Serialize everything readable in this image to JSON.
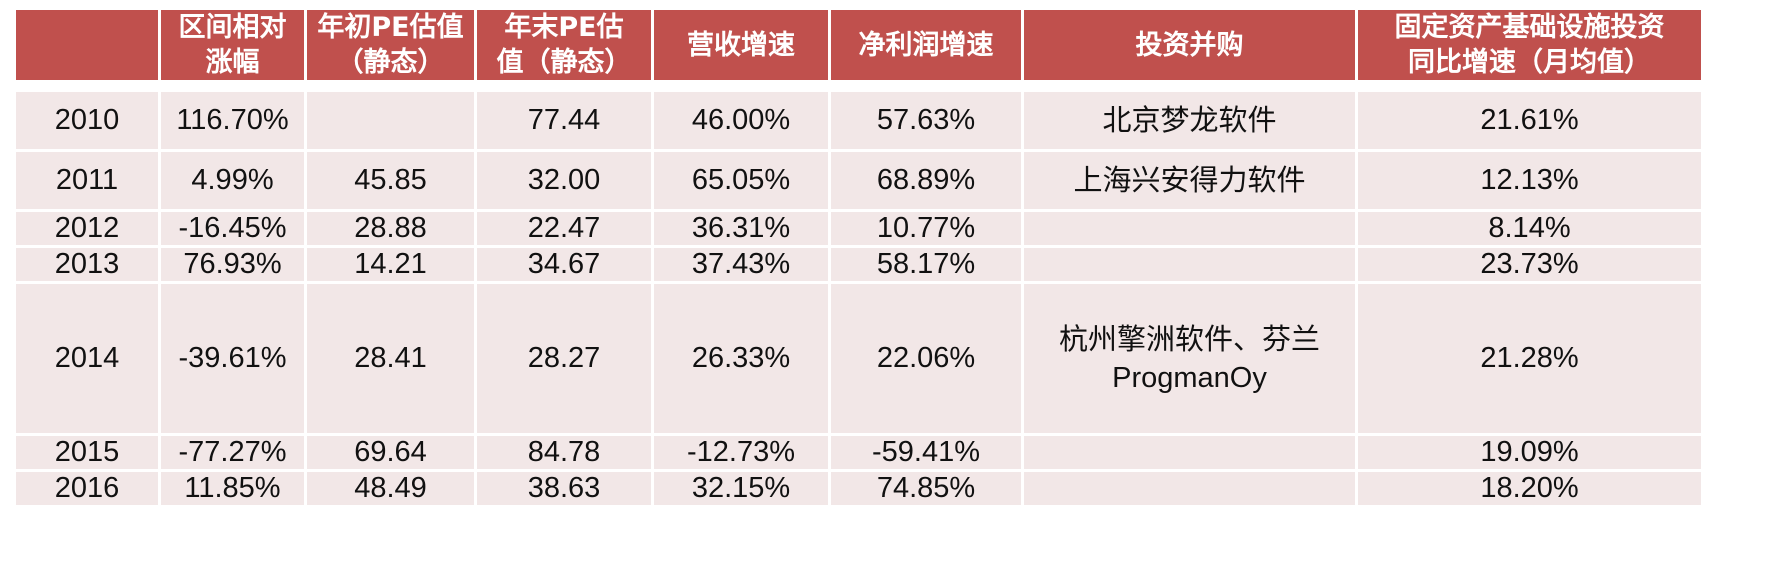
{
  "chart_data": {
    "type": "table",
    "columns": [
      "",
      "区间相对涨幅",
      "年初PE估值（静态）",
      "年末PE估值（静态）",
      "营收增速",
      "净利润增速",
      "投资并购",
      "固定资产基础设施投资同比增速（月均值）"
    ],
    "header_lines": [
      [
        ""
      ],
      [
        "区间相对",
        "涨幅"
      ],
      [
        "年初PE估值",
        "（静态）"
      ],
      [
        "年末PE估",
        "值（静态）"
      ],
      [
        "营收增速"
      ],
      [
        "净利润增速"
      ],
      [
        "投资并购"
      ],
      [
        "固定资产基础设施投资",
        "同比增速（月均值）"
      ]
    ],
    "rows": [
      {
        "year": "2010",
        "rel_change": "116.70%",
        "pe_start": "",
        "pe_end": "77.44",
        "revenue_growth": "46.00%",
        "profit_growth": "57.63%",
        "ma_lines": [
          "北京梦龙软件"
        ],
        "infra_growth": "21.61%"
      },
      {
        "year": "2011",
        "rel_change": "4.99%",
        "pe_start": "45.85",
        "pe_end": "32.00",
        "revenue_growth": "65.05%",
        "profit_growth": "68.89%",
        "ma_lines": [
          "上海兴安得力软件"
        ],
        "infra_growth": "12.13%"
      },
      {
        "year": "2012",
        "rel_change": "-16.45%",
        "pe_start": "28.88",
        "pe_end": "22.47",
        "revenue_growth": "36.31%",
        "profit_growth": "10.77%",
        "ma_lines": [
          ""
        ],
        "infra_growth": "8.14%"
      },
      {
        "year": "2013",
        "rel_change": "76.93%",
        "pe_start": "14.21",
        "pe_end": "34.67",
        "revenue_growth": "37.43%",
        "profit_growth": "58.17%",
        "ma_lines": [
          ""
        ],
        "infra_growth": "23.73%"
      },
      {
        "year": "2014",
        "rel_change": "-39.61%",
        "pe_start": "28.41",
        "pe_end": "28.27",
        "revenue_growth": "26.33%",
        "profit_growth": "22.06%",
        "ma_lines": [
          "杭州擎洲软件、芬兰",
          "ProgmanOy"
        ],
        "infra_growth": "21.28%"
      },
      {
        "year": "2015",
        "rel_change": "-77.27%",
        "pe_start": "69.64",
        "pe_end": "84.78",
        "revenue_growth": "-12.73%",
        "profit_growth": "-59.41%",
        "ma_lines": [
          ""
        ],
        "infra_growth": "19.09%"
      },
      {
        "year": "2016",
        "rel_change": "11.85%",
        "pe_start": "48.49",
        "pe_end": "38.63",
        "revenue_growth": "32.15%",
        "profit_growth": "74.85%",
        "ma_lines": [
          ""
        ],
        "infra_growth": "18.20%"
      }
    ],
    "colors": {
      "header_bg": "#c0504d",
      "header_text": "#ffffff",
      "cell_bg": "#f2e7e7",
      "text": "#111111"
    }
  }
}
